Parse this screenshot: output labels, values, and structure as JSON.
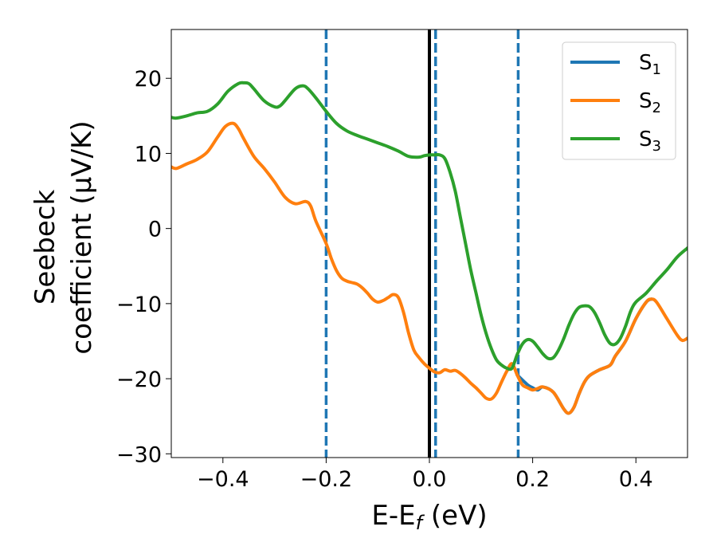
{
  "chart_data": {
    "type": "line",
    "xlabel_main": "E-E",
    "xlabel_sub": "f",
    "xlabel_unit": " (eV)",
    "ylabel_line1": "Seebeck",
    "ylabel_line2": "coefficient  (μV/K)",
    "xlim": [
      -0.5,
      0.5
    ],
    "ylim": [
      -30.5,
      26.5
    ],
    "xticks": [
      -0.4,
      -0.2,
      0.0,
      0.2,
      0.4
    ],
    "xtick_labels": [
      "−0.4",
      "−0.2",
      "0.0",
      "0.2",
      "0.4"
    ],
    "yticks": [
      -30,
      -20,
      -10,
      0,
      10,
      20
    ],
    "ytick_labels": [
      "−30",
      "−20",
      "−10",
      "0",
      "10",
      "20"
    ],
    "grid": false,
    "legend_position": "top-right",
    "vertical_lines": [
      {
        "x": 0.0,
        "style": "solid",
        "color": "#000000"
      },
      {
        "x": -0.2,
        "style": "dashed",
        "color": "#1f77b4"
      },
      {
        "x": 0.012,
        "style": "dashed",
        "color": "#1f77b4"
      },
      {
        "x": 0.172,
        "style": "dashed",
        "color": "#1f77b4"
      }
    ],
    "series": [
      {
        "name": "S",
        "subscript": "1",
        "color": "#1f77b4",
        "x": [
          0.17,
          0.19,
          0.2,
          0.21,
          0.22,
          0.24,
          0.26,
          0.27,
          0.28,
          0.29,
          0.3,
          0.31,
          0.33,
          0.35,
          0.36,
          0.38,
          0.4,
          0.42,
          0.43
        ],
        "y": [
          -19.5,
          -20.8,
          -21.2,
          -21.5,
          -21.1,
          -21.8,
          -24.0,
          -24.6,
          -23.8,
          -22.0,
          -20.5,
          -19.6,
          -18.8,
          -18.2,
          -17.0,
          -15.0,
          -12.0,
          -9.8,
          -9.4
        ]
      },
      {
        "name": "S",
        "subscript": "2",
        "color": "#ff7f0e",
        "x": [
          -0.5,
          -0.49,
          -0.47,
          -0.45,
          -0.43,
          -0.41,
          -0.395,
          -0.38,
          -0.37,
          -0.36,
          -0.34,
          -0.32,
          -0.3,
          -0.28,
          -0.26,
          -0.24,
          -0.23,
          -0.22,
          -0.2,
          -0.19,
          -0.18,
          -0.17,
          -0.16,
          -0.15,
          -0.14,
          -0.13,
          -0.12,
          -0.11,
          -0.1,
          -0.09,
          -0.08,
          -0.07,
          -0.06,
          -0.05,
          -0.04,
          -0.03,
          -0.02,
          -0.01,
          0.0,
          0.01,
          0.02,
          0.03,
          0.04,
          0.05,
          0.06,
          0.07,
          0.08,
          0.09,
          0.1,
          0.11,
          0.12,
          0.13,
          0.14,
          0.15,
          0.16,
          0.17,
          0.18,
          0.19,
          0.2,
          0.21,
          0.22,
          0.24,
          0.26,
          0.27,
          0.28,
          0.29,
          0.3,
          0.31,
          0.33,
          0.35,
          0.36,
          0.38,
          0.4,
          0.42,
          0.43,
          0.44,
          0.46,
          0.48,
          0.49,
          0.5
        ],
        "y": [
          8.2,
          8.0,
          8.6,
          9.2,
          10.2,
          12.2,
          13.6,
          14.0,
          13.3,
          12.0,
          9.6,
          8.0,
          6.2,
          4.2,
          3.3,
          3.6,
          3.0,
          1.0,
          -2.0,
          -4.0,
          -5.6,
          -6.6,
          -7.0,
          -7.2,
          -7.4,
          -7.9,
          -8.6,
          -9.4,
          -9.8,
          -9.6,
          -9.2,
          -8.8,
          -9.2,
          -11.2,
          -14.0,
          -16.2,
          -17.2,
          -18.0,
          -18.6,
          -19.1,
          -19.2,
          -18.8,
          -19.0,
          -18.9,
          -19.3,
          -19.9,
          -20.6,
          -21.2,
          -21.9,
          -22.6,
          -22.7,
          -21.9,
          -20.4,
          -19.0,
          -18.0,
          -19.5,
          -20.8,
          -21.2,
          -21.5,
          -21.3,
          -21.1,
          -21.8,
          -24.0,
          -24.6,
          -23.8,
          -22.0,
          -20.5,
          -19.6,
          -18.8,
          -18.2,
          -17.0,
          -15.0,
          -12.0,
          -9.8,
          -9.4,
          -9.8,
          -12.0,
          -14.2,
          -14.9,
          -14.6
        ]
      },
      {
        "name": "S",
        "subscript": "3",
        "color": "#2ca02c",
        "x": [
          -0.5,
          -0.49,
          -0.47,
          -0.45,
          -0.43,
          -0.41,
          -0.39,
          -0.37,
          -0.36,
          -0.35,
          -0.34,
          -0.32,
          -0.3,
          -0.29,
          -0.28,
          -0.26,
          -0.245,
          -0.235,
          -0.22,
          -0.2,
          -0.18,
          -0.16,
          -0.14,
          -0.12,
          -0.1,
          -0.08,
          -0.06,
          -0.04,
          -0.02,
          -0.01,
          0.0,
          0.01,
          0.02,
          0.03,
          0.04,
          0.05,
          0.06,
          0.07,
          0.08,
          0.09,
          0.1,
          0.11,
          0.12,
          0.13,
          0.14,
          0.15,
          0.16,
          0.17,
          0.18,
          0.19,
          0.2,
          0.21,
          0.22,
          0.23,
          0.24,
          0.25,
          0.26,
          0.27,
          0.28,
          0.29,
          0.3,
          0.31,
          0.32,
          0.33,
          0.34,
          0.35,
          0.36,
          0.37,
          0.38,
          0.39,
          0.4,
          0.42,
          0.44,
          0.46,
          0.48,
          0.5
        ],
        "y": [
          14.8,
          14.7,
          15.0,
          15.4,
          15.6,
          16.6,
          18.3,
          19.3,
          19.4,
          19.3,
          18.6,
          17.0,
          16.2,
          16.3,
          17.0,
          18.6,
          19.0,
          18.6,
          17.4,
          15.6,
          14.0,
          13.0,
          12.4,
          11.9,
          11.4,
          10.9,
          10.3,
          9.6,
          9.5,
          9.7,
          9.8,
          9.8,
          9.8,
          9.3,
          7.5,
          5.0,
          1.5,
          -2.0,
          -5.5,
          -8.5,
          -11.5,
          -14.0,
          -16.0,
          -17.5,
          -18.2,
          -18.6,
          -18.6,
          -16.8,
          -15.4,
          -14.8,
          -15.0,
          -15.8,
          -16.7,
          -17.3,
          -17.2,
          -16.2,
          -14.7,
          -12.9,
          -11.4,
          -10.5,
          -10.3,
          -10.4,
          -11.2,
          -12.6,
          -14.2,
          -15.3,
          -15.4,
          -14.6,
          -13.0,
          -11.0,
          -9.8,
          -8.6,
          -7.0,
          -5.5,
          -3.8,
          -2.6
        ]
      }
    ]
  }
}
